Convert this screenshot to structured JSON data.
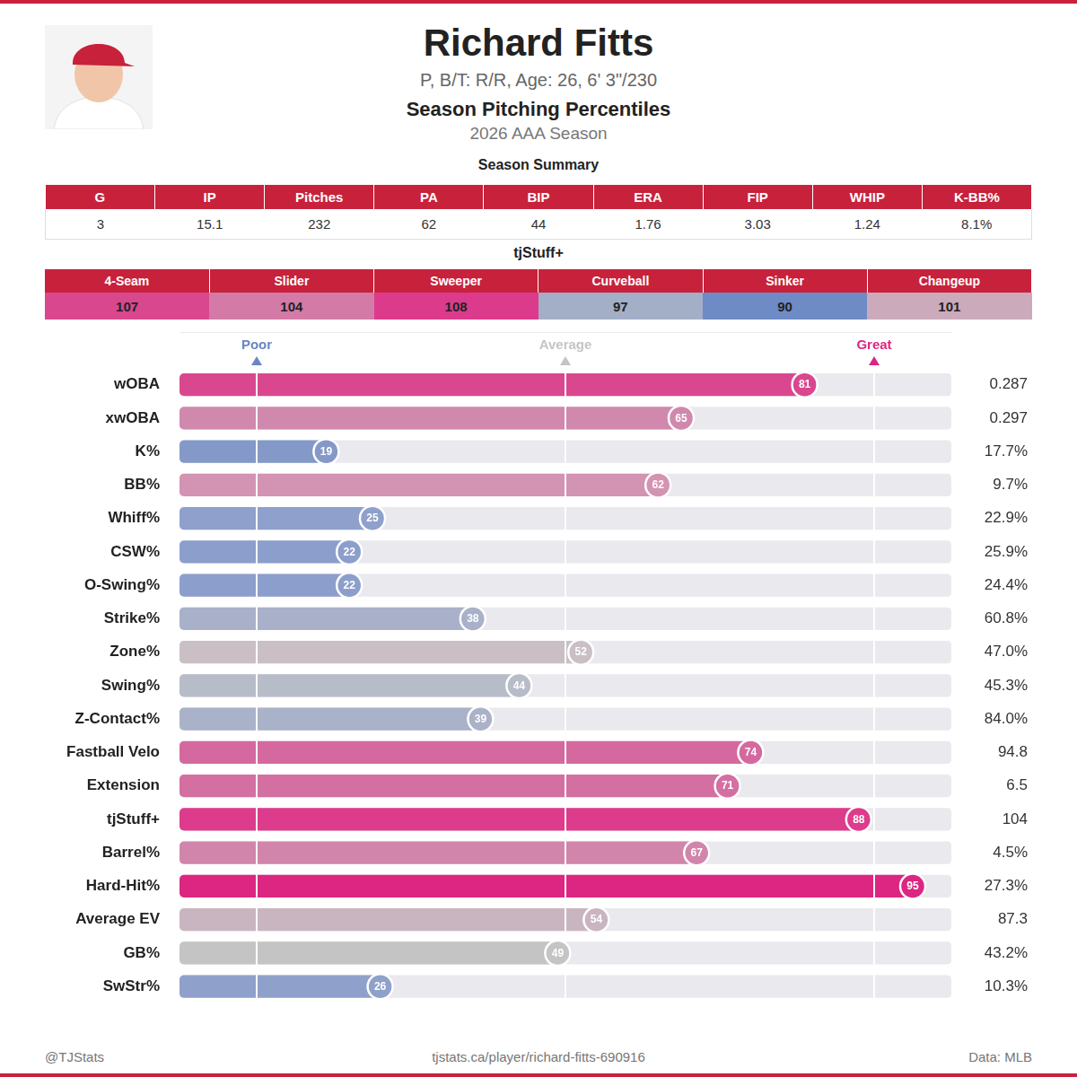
{
  "header": {
    "title": "Richard Fitts",
    "subtitle": "P, B/T: R/R, Age: 26, 6' 3\"/230",
    "heading": "Season Pitching Percentiles",
    "season": "2026 AAA Season"
  },
  "season_summary": {
    "title": "Season Summary",
    "columns": [
      "G",
      "IP",
      "Pitches",
      "PA",
      "BIP",
      "ERA",
      "FIP",
      "WHIP",
      "K-BB%"
    ],
    "values": [
      3,
      15.1,
      232,
      62,
      44,
      1.76,
      3.03,
      1.24,
      "8.1%"
    ]
  },
  "tjstuff": {
    "title": "tjStuff+",
    "columns": [
      "4-Seam",
      "Slider",
      "Sweeper",
      "Curveball",
      "Sinker",
      "Changeup"
    ],
    "values": [
      107,
      104,
      108,
      97,
      90,
      101
    ],
    "colors": [
      "#d9478f",
      "#d47aa7",
      "#dc3b8c",
      "#a3aec7",
      "#6e8bc6",
      "#cbaabb"
    ]
  },
  "chart_data": {
    "type": "bar",
    "orientation": "horizontal",
    "categories": [
      "wOBA",
      "xwOBA",
      "K%",
      "BB%",
      "Whiff%",
      "CSW%",
      "O-Swing%",
      "Strike%",
      "Zone%",
      "Swing%",
      "Z-Contact%",
      "Fastball Velo",
      "Extension",
      "tjStuff+",
      "Barrel%",
      "Hard-Hit%",
      "Average EV",
      "GB%",
      "SwStr%"
    ],
    "values": [
      81,
      65,
      19,
      62,
      25,
      22,
      22,
      38,
      52,
      44,
      39,
      74,
      71,
      88,
      67,
      95,
      54,
      49,
      26
    ],
    "colors": [
      "#d9478f",
      "#d088ad",
      "#8499c8",
      "#d393b2",
      "#8ea0cb",
      "#8c9ecb",
      "#8c9ecb",
      "#a8b1c9",
      "#c9bfc5",
      "#b7bcc9",
      "#a9b2c8",
      "#d4699f",
      "#d46fa2",
      "#dd3b8b",
      "#d285ab",
      "#dc2681",
      "#c9b5c0",
      "#c4c4c4",
      "#8fa1cb"
    ],
    "stat_values": [
      "0.287",
      "0.297",
      "17.7%",
      "9.7%",
      "22.9%",
      "25.9%",
      "24.4%",
      "60.8%",
      "47.0%",
      "45.3%",
      "84.0%",
      "94.8",
      "6.5",
      "104",
      "4.5%",
      "27.3%",
      "87.3",
      "43.2%",
      "10.3%"
    ],
    "data_labels": true,
    "xlim": [
      0,
      100
    ],
    "xticks": [
      {
        "value": 10,
        "label": "Poor"
      },
      {
        "value": 50,
        "label": "Average"
      },
      {
        "value": 90,
        "label": "Great"
      }
    ],
    "grid": true
  },
  "footer": {
    "left": "@TJStats",
    "center": "tjstats.ca/player/richard-fitts-690916",
    "right": "Data: MLB"
  }
}
